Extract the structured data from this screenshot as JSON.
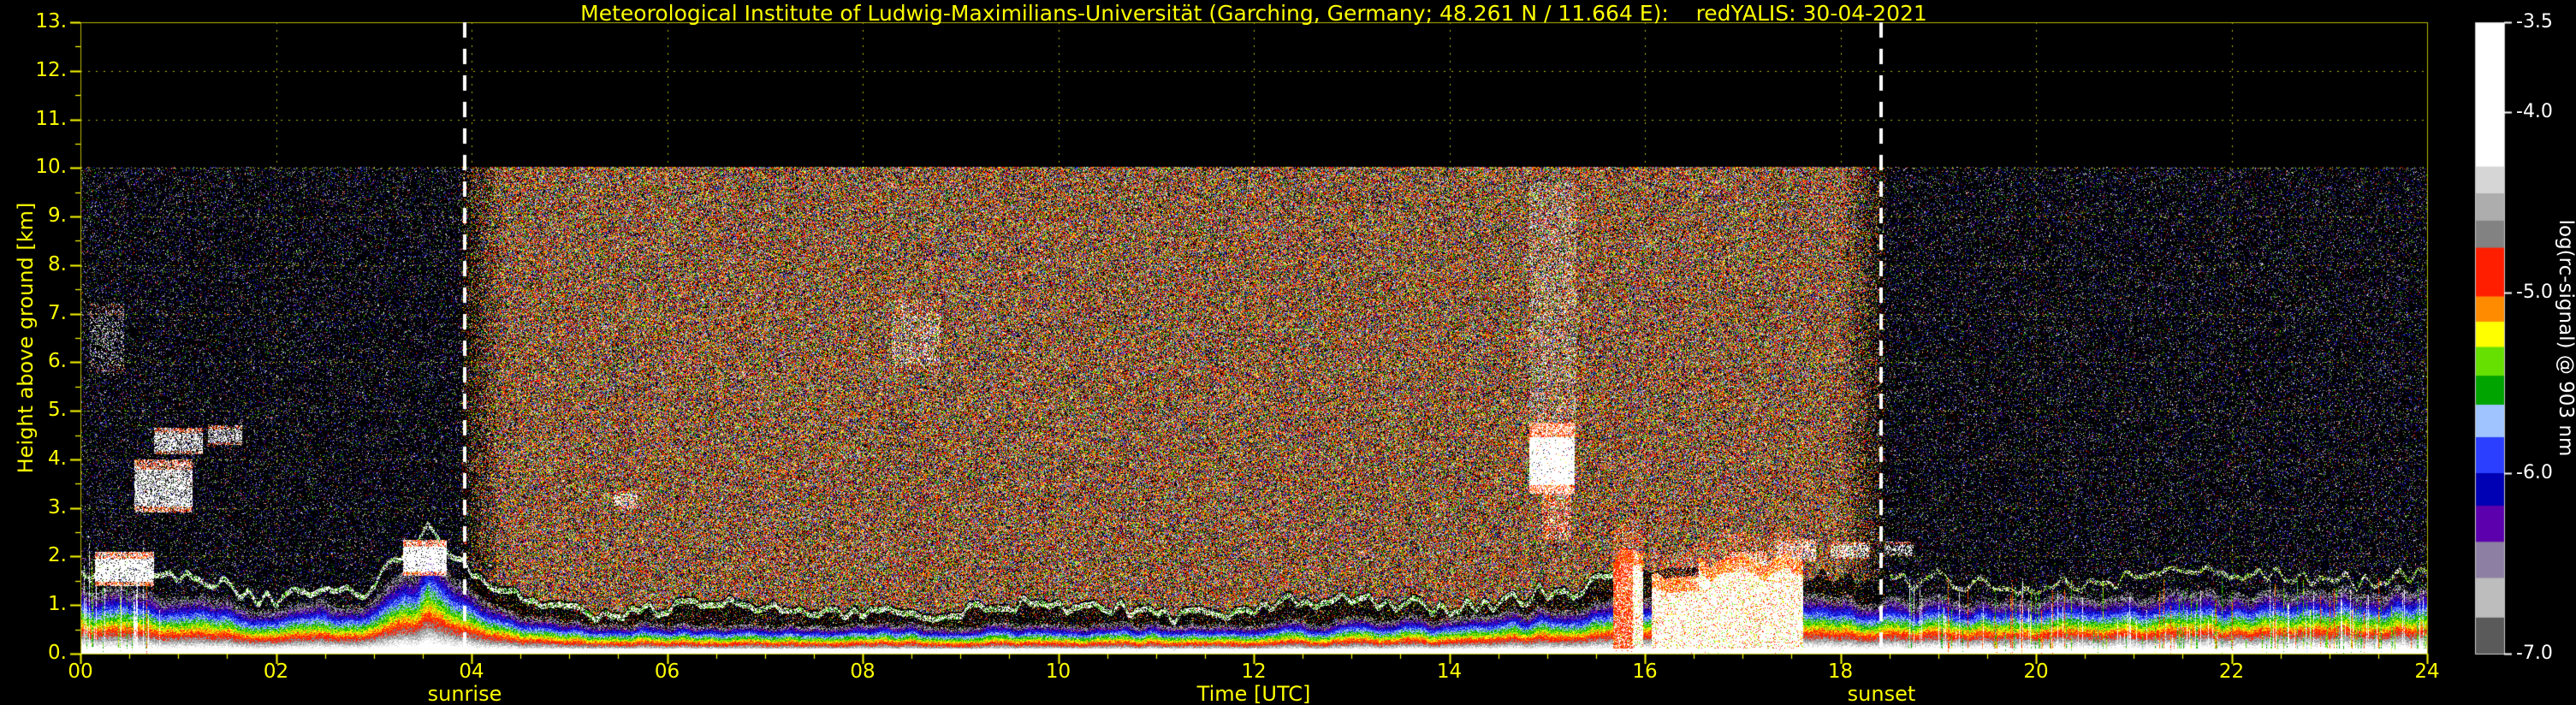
{
  "header": {
    "title": "Meteorological Institute of Ludwig-Maximilians-Universität (Garching, Germany; 48.261 N / 11.664 E):    redYALIS: 30-04-2021"
  },
  "axes": {
    "x": {
      "label": "Time [UTC]",
      "min": 0,
      "max": 24,
      "ticks": [
        "00",
        "02",
        "04",
        "06",
        "08",
        "10",
        "12",
        "14",
        "16",
        "18",
        "20",
        "22",
        "24"
      ],
      "tick_values": [
        0,
        2,
        4,
        6,
        8,
        10,
        12,
        14,
        16,
        18,
        20,
        22,
        24
      ]
    },
    "y": {
      "label": "Height above ground [km]",
      "min": 0,
      "max": 13,
      "ticks": [
        "0.",
        "1.",
        "2.",
        "3.",
        "4.",
        "5.",
        "6.",
        "7.",
        "8.",
        "9.",
        "10.",
        "11.",
        "12.",
        "13."
      ],
      "tick_values": [
        0,
        1,
        2,
        3,
        4,
        5,
        6,
        7,
        8,
        9,
        10,
        11,
        12,
        13
      ]
    }
  },
  "annotations": {
    "sunrise": {
      "label": "sunrise",
      "time_utc": 3.93
    },
    "sunset": {
      "label": "sunset",
      "time_utc": 18.42
    }
  },
  "colorbar": {
    "label": "log(rc-signal) @ 903 nm",
    "max": -3.5,
    "min": -7.0,
    "tick_labels": [
      "-3.5",
      "-4.0",
      "-5.0",
      "-6.0",
      "-7.0"
    ],
    "tick_values": [
      -3.5,
      -4.0,
      -5.0,
      -6.0,
      -7.0
    ],
    "segments": [
      {
        "to": -4.3,
        "color": "#ffffff"
      },
      {
        "to": -4.45,
        "color": "#d6d6d6"
      },
      {
        "to": -4.6,
        "color": "#adadad"
      },
      {
        "to": -4.75,
        "color": "#828282"
      },
      {
        "to": -5.02,
        "color": "#ff1f00"
      },
      {
        "to": -5.16,
        "color": "#ff8c00"
      },
      {
        "to": -5.3,
        "color": "#ffff00"
      },
      {
        "to": -5.46,
        "color": "#66e000"
      },
      {
        "to": -5.62,
        "color": "#00a400"
      },
      {
        "to": -5.8,
        "color": "#9fc4ff"
      },
      {
        "to": -6.0,
        "color": "#2a3fff"
      },
      {
        "to": -6.18,
        "color": "#0000b4"
      },
      {
        "to": -6.38,
        "color": "#5c00ae"
      },
      {
        "to": -6.58,
        "color": "#8d7fa3"
      },
      {
        "to": -6.8,
        "color": "#bdbdbd"
      },
      {
        "to": -7.0,
        "color": "#5a5a5a"
      }
    ]
  },
  "colors": {
    "accent": "#ffff00",
    "background": "#000000",
    "grid": "rgba(205,205,0,0.9)",
    "axis": "#b9b900",
    "tick": "#ffff00",
    "sun_line": "#ffffff",
    "colorbar_text": "#ffffff"
  },
  "chart_data": {
    "type": "heatmap",
    "title": "Meteorological Institute of Ludwig-Maximilians-Universität (Garching, Germany; 48.261 N / 11.664 E):    redYALIS: 30-04-2021",
    "instrument": "redYALIS",
    "date": "30-04-2021",
    "xlabel": "Time [UTC]",
    "ylabel": "Height above ground [km]",
    "xlim": [
      0,
      24
    ],
    "ylim": [
      0,
      13
    ],
    "value_label": "log(rc-signal) @ 903 nm",
    "value_range": [
      -7.0,
      -3.5
    ],
    "data_extent_km": 10,
    "sunrise_utc": 3.93,
    "sunset_utc": 18.42,
    "layout_hints": {
      "grid": "on",
      "grid_style": "yellow dotted every 1 km / 2 h",
      "sun_lines": "white dashed vertical at sunrise and sunset"
    },
    "features": {
      "background_noise": {
        "description": "Dense warm-colored solar background speckle from sunrise to sunset filling 0-10 km; sparse cool (blue/purple) speckle at night; pure black above 10 km",
        "day_fill_fraction": 0.77,
        "night_fill_fraction": 0.17
      },
      "boundary_layer": {
        "description": "Stratified aerosol layer near the surface: white/red at ground grading through yellow-green-cyan-blue-purple with height, topped by a jagged white ridge line",
        "ridge_offset_km": 0.3,
        "top_km": [
          [
            0,
            1.35
          ],
          [
            1,
            1.15
          ],
          [
            2,
            0.95
          ],
          [
            3,
            1.1
          ],
          [
            3.55,
            2.15
          ],
          [
            3.8,
            1.5
          ],
          [
            4.2,
            0.95
          ],
          [
            5,
            0.68
          ],
          [
            6,
            0.6
          ],
          [
            8,
            0.62
          ],
          [
            10,
            0.6
          ],
          [
            12,
            0.65
          ],
          [
            14,
            0.75
          ],
          [
            14.8,
            0.9
          ],
          [
            15.4,
            1.05
          ],
          [
            15.7,
            1.3
          ],
          [
            17.8,
            1.3
          ],
          [
            18.4,
            1.1
          ],
          [
            19.5,
            1.15
          ],
          [
            21,
            1.2
          ],
          [
            23,
            1.3
          ],
          [
            24,
            1.35
          ]
        ]
      },
      "clouds": [
        {
          "t0": 0.1,
          "t1": 0.45,
          "h0": 5.8,
          "h1": 7.2,
          "density": 0.18,
          "type": "sparse"
        },
        {
          "t0": 0.15,
          "t1": 0.75,
          "h0": 1.4,
          "h1": 2.1,
          "density": 0.85,
          "type": "solid"
        },
        {
          "t0": 0.55,
          "t1": 1.15,
          "h0": 2.9,
          "h1": 4.0,
          "density": 0.7,
          "type": "solid"
        },
        {
          "t0": 0.75,
          "t1": 1.25,
          "h0": 4.1,
          "h1": 4.65,
          "density": 0.6,
          "type": "solid"
        },
        {
          "t0": 1.3,
          "t1": 1.65,
          "h0": 4.3,
          "h1": 4.7,
          "density": 0.5,
          "type": "solid"
        },
        {
          "t0": 3.3,
          "t1": 3.75,
          "h0": 1.6,
          "h1": 2.35,
          "density": 0.9,
          "type": "solid"
        },
        {
          "t0": 5.45,
          "t1": 5.7,
          "h0": 3.0,
          "h1": 3.35,
          "density": 0.45,
          "type": "sparse"
        },
        {
          "t0": 8.3,
          "t1": 8.8,
          "h0": 5.8,
          "h1": 7.3,
          "density": 0.22,
          "type": "sparse"
        },
        {
          "t0": 14.82,
          "t1": 15.28,
          "h0": 3.3,
          "h1": 4.75,
          "density": 0.95,
          "type": "solid"
        },
        {
          "t0": 14.95,
          "t1": 15.25,
          "h0": 2.35,
          "h1": 3.3,
          "density": 0.5,
          "type": "virga"
        },
        {
          "t0": 16.85,
          "t1": 17.25,
          "h0": 1.7,
          "h1": 2.1,
          "density": 0.6,
          "type": "solid"
        },
        {
          "t0": 17.35,
          "t1": 17.75,
          "h0": 1.9,
          "h1": 2.35,
          "density": 0.55,
          "type": "solid"
        },
        {
          "t0": 17.9,
          "t1": 18.3,
          "h0": 1.95,
          "h1": 2.3,
          "density": 0.5,
          "type": "solid"
        },
        {
          "t0": 18.45,
          "t1": 18.75,
          "h0": 2.0,
          "h1": 2.3,
          "density": 0.4,
          "type": "sparse"
        }
      ],
      "precipitation": {
        "description": "Strong rain / drizzle event with saturated white-red signal below ~2 km between about 15:40 and 17:40 UTC",
        "segments": [
          {
            "t0": 15.68,
            "t1": 16.02,
            "top_km": 2.05
          },
          {
            "t0": 16.02,
            "t1": 16.55,
            "top_km": 1.55
          },
          {
            "t0": 16.55,
            "t1": 17.62,
            "top_km": 1.95
          }
        ]
      },
      "column_streaks": {
        "description": "Thin bright vertical streaks in the lowest 2 km before ~00:50 and after ~18:40 UTC",
        "early_end_utc": 0.85,
        "evening_start_utc": 18.7,
        "probability": 0.28
      },
      "enhanced_noise_column": {
        "t0": 14.82,
        "t1": 15.3,
        "h0": 4.6,
        "h1": 9.7
      }
    }
  }
}
